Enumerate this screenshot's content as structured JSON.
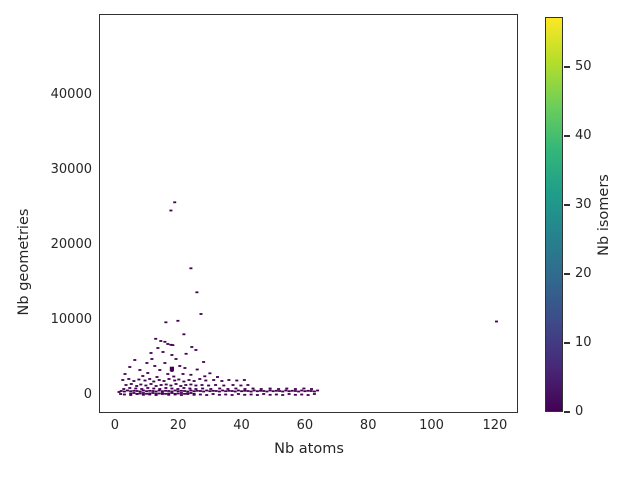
{
  "colors": {
    "background": "#ffffff",
    "spine": "#323232",
    "text": "#262626",
    "point_color": "#440154"
  },
  "chart_data": {
    "type": "scatter",
    "title": "",
    "xlabel": "Nb atoms",
    "ylabel": "Nb geometries",
    "xlim": [
      -4.7,
      127.3
    ],
    "ylim": [
      -2400,
      50670
    ],
    "xticks": [
      0,
      20,
      40,
      60,
      80,
      100,
      120
    ],
    "yticks": [
      0,
      10000,
      20000,
      30000,
      40000
    ],
    "grid": false,
    "legend": "none",
    "colorbar": {
      "label": "Nb isomers",
      "min": 0,
      "max": 57.2,
      "ticks": [
        0,
        10,
        20,
        30,
        40,
        50
      ],
      "colormap": "viridis",
      "gradient_stops": [
        "#440154",
        "#482878",
        "#3e4989",
        "#31688e",
        "#26828e",
        "#1f9e89",
        "#35b779",
        "#6ece58",
        "#b5de2b",
        "#fde725"
      ]
    },
    "point_color": "#440154",
    "points": [
      [
        18.9,
        25700
      ],
      [
        17.7,
        24600
      ],
      [
        24,
        16900
      ],
      [
        25.9,
        13700
      ],
      [
        27.2,
        10800
      ],
      [
        19.9,
        9900
      ],
      [
        16.1,
        9700
      ],
      [
        120.5,
        9800
      ],
      [
        21.8,
        8100
      ],
      [
        12.9,
        7500
      ],
      [
        14.5,
        7200
      ],
      [
        15.8,
        7100
      ],
      [
        16.7,
        6800
      ],
      [
        17.7,
        6700
      ],
      [
        18.3,
        6650
      ],
      [
        24.3,
        6400
      ],
      [
        13.6,
        6270
      ],
      [
        25.6,
        6000
      ],
      [
        15.2,
        5730
      ],
      [
        11.4,
        5600
      ],
      [
        22.5,
        5500
      ],
      [
        18,
        5330
      ],
      [
        11.7,
        4800
      ],
      [
        19.3,
        4800
      ],
      [
        6.3,
        4670
      ],
      [
        28,
        4400
      ],
      [
        10.1,
        4270
      ],
      [
        15.8,
        4270
      ],
      [
        12.6,
        3870
      ],
      [
        20.5,
        3870
      ],
      [
        4.7,
        3730
      ],
      [
        22.1,
        3600
      ],
      [
        18,
        3500,
        2
      ],
      [
        7.9,
        3330
      ],
      [
        14.2,
        3330
      ],
      [
        26,
        3400
      ],
      [
        18,
        3200
      ],
      [
        30,
        2900
      ],
      [
        10.4,
        2930
      ],
      [
        3.2,
        2800
      ],
      [
        16.7,
        2800
      ],
      [
        21.5,
        2800
      ],
      [
        24,
        2700
      ],
      [
        8.8,
        2530
      ],
      [
        28.4,
        2500
      ],
      [
        18.6,
        2470
      ],
      [
        13.3,
        2400
      ],
      [
        32.4,
        2400
      ],
      [
        2.5,
        2000
      ],
      [
        4.4,
        2130
      ],
      [
        6,
        1870
      ],
      [
        7.6,
        2070
      ],
      [
        9.5,
        1930
      ],
      [
        11,
        2130
      ],
      [
        12.3,
        1800
      ],
      [
        14,
        2000
      ],
      [
        15.5,
        1870
      ],
      [
        17.1,
        2130
      ],
      [
        18.9,
        1930
      ],
      [
        20.2,
        2070
      ],
      [
        21.8,
        1800
      ],
      [
        23.4,
        2000
      ],
      [
        25,
        1870
      ],
      [
        26.8,
        2130
      ],
      [
        28.7,
        1930
      ],
      [
        31.2,
        2000
      ],
      [
        33.8,
        1870
      ],
      [
        36,
        2000
      ],
      [
        38.5,
        1930
      ],
      [
        40.9,
        2000
      ],
      [
        3.5,
        1330
      ],
      [
        5.2,
        1470
      ],
      [
        6.9,
        1200
      ],
      [
        8.2,
        1400
      ],
      [
        9.8,
        1270
      ],
      [
        11.4,
        1470
      ],
      [
        13,
        1200
      ],
      [
        14.6,
        1330
      ],
      [
        16.2,
        1400
      ],
      [
        17.7,
        1270
      ],
      [
        19.3,
        1470
      ],
      [
        20.8,
        1200
      ],
      [
        22.4,
        1330
      ],
      [
        24,
        1400
      ],
      [
        25.6,
        1270
      ],
      [
        27.5,
        1330
      ],
      [
        29.6,
        1270
      ],
      [
        31.8,
        1330
      ],
      [
        34.4,
        1270
      ],
      [
        37.3,
        1330
      ],
      [
        39.8,
        1270
      ],
      [
        42,
        1330
      ],
      [
        2.8,
        800
      ],
      [
        4.7,
        930
      ],
      [
        6.6,
        870
      ],
      [
        8.5,
        800
      ],
      [
        10.4,
        930
      ],
      [
        12.3,
        870
      ],
      [
        14.2,
        800
      ],
      [
        16.1,
        930
      ],
      [
        18,
        870
      ],
      [
        19.9,
        800
      ],
      [
        21.8,
        930
      ],
      [
        23.7,
        870
      ],
      [
        25.6,
        800
      ],
      [
        27.7,
        870
      ],
      [
        30.3,
        800
      ],
      [
        33.1,
        870
      ],
      [
        35.7,
        800
      ],
      [
        38.2,
        870
      ],
      [
        41.1,
        800
      ],
      [
        43.6,
        870
      ],
      [
        46.2,
        800
      ],
      [
        49,
        870
      ],
      [
        51.7,
        800
      ],
      [
        54.3,
        870
      ],
      [
        57,
        800
      ],
      [
        59.7,
        870
      ],
      [
        62.1,
        800
      ],
      [
        2,
        530
      ],
      [
        3,
        470
      ],
      [
        4,
        600
      ],
      [
        5,
        510
      ],
      [
        6,
        560
      ],
      [
        7,
        530
      ],
      [
        8,
        470
      ],
      [
        9,
        600
      ],
      [
        10,
        510
      ],
      [
        11,
        560
      ],
      [
        12,
        530
      ],
      [
        13,
        470
      ],
      [
        14,
        600
      ],
      [
        15,
        510
      ],
      [
        16,
        560
      ],
      [
        17,
        530
      ],
      [
        18,
        470
      ],
      [
        19,
        600
      ],
      [
        20,
        510
      ],
      [
        21,
        560
      ],
      [
        22,
        530
      ],
      [
        23,
        470
      ],
      [
        24,
        600
      ],
      [
        25,
        510
      ],
      [
        26,
        560
      ],
      [
        27,
        530
      ],
      [
        28,
        470
      ],
      [
        29,
        600
      ],
      [
        30,
        510
      ],
      [
        31,
        560
      ],
      [
        32,
        530
      ],
      [
        33,
        470
      ],
      [
        34,
        600
      ],
      [
        35,
        510
      ],
      [
        36,
        560
      ],
      [
        37,
        530
      ],
      [
        38,
        470
      ],
      [
        39,
        600
      ],
      [
        40,
        510
      ],
      [
        41,
        560
      ],
      [
        42,
        530
      ],
      [
        43,
        470
      ],
      [
        44,
        600
      ],
      [
        45,
        510
      ],
      [
        46,
        560
      ],
      [
        47,
        530
      ],
      [
        48,
        470
      ],
      [
        49,
        600
      ],
      [
        50,
        510
      ],
      [
        51,
        560
      ],
      [
        52,
        530
      ],
      [
        53,
        470
      ],
      [
        54,
        600
      ],
      [
        55,
        510
      ],
      [
        56,
        560
      ],
      [
        57,
        530
      ],
      [
        58,
        470
      ],
      [
        59,
        600
      ],
      [
        60,
        510
      ],
      [
        61,
        560
      ],
      [
        62,
        530
      ],
      [
        63,
        470
      ],
      [
        64,
        600
      ],
      [
        3,
        70
      ],
      [
        5,
        0
      ],
      [
        7,
        130
      ],
      [
        9,
        30
      ],
      [
        11,
        70
      ],
      [
        13,
        0
      ],
      [
        15,
        130
      ],
      [
        17,
        30
      ],
      [
        19,
        70
      ],
      [
        21,
        0
      ],
      [
        23,
        130
      ],
      [
        25,
        30
      ],
      [
        27,
        70
      ],
      [
        29,
        0
      ],
      [
        31,
        130
      ],
      [
        33,
        30
      ],
      [
        35,
        70
      ],
      [
        37,
        0
      ],
      [
        39,
        130
      ],
      [
        41,
        30
      ],
      [
        43,
        70
      ],
      [
        45,
        0
      ],
      [
        47,
        130
      ],
      [
        49,
        30
      ],
      [
        51,
        70
      ],
      [
        53,
        0
      ],
      [
        55,
        130
      ],
      [
        57,
        30
      ],
      [
        59,
        70
      ],
      [
        61,
        0
      ],
      [
        63,
        130
      ],
      [
        5,
        200
      ],
      [
        6,
        270
      ],
      [
        7,
        160
      ],
      [
        8,
        200
      ],
      [
        9,
        270
      ],
      [
        10,
        160
      ],
      [
        11,
        200
      ],
      [
        12,
        270
      ],
      [
        13,
        160
      ],
      [
        14,
        200
      ],
      [
        15,
        270
      ],
      [
        16,
        160
      ],
      [
        17,
        200
      ],
      [
        18,
        270
      ],
      [
        19,
        160
      ],
      [
        20,
        200
      ],
      [
        21,
        270
      ],
      [
        22,
        160
      ],
      [
        23,
        200
      ],
      [
        24,
        270
      ],
      [
        25,
        160
      ],
      [
        1.3,
        400
      ],
      [
        1.8,
        130
      ]
    ]
  }
}
